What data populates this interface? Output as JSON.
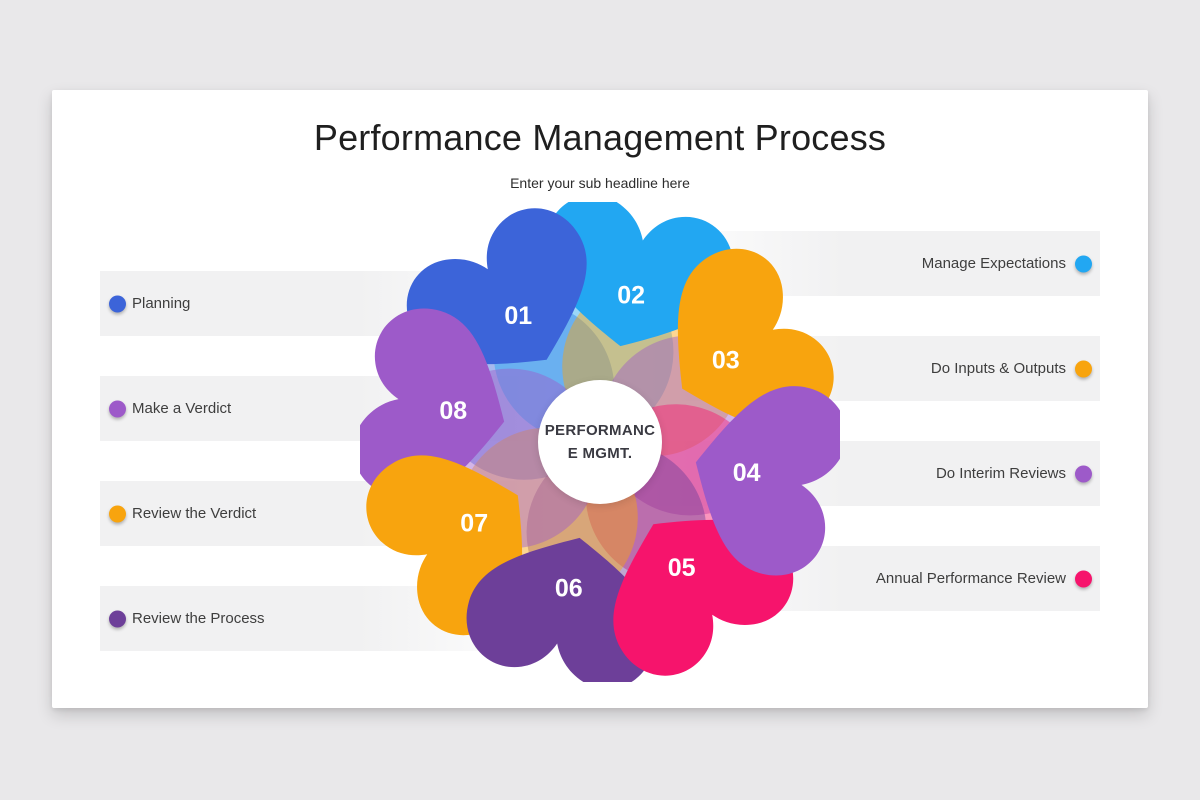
{
  "header": {
    "title": "Performance Management Process",
    "subtitle": "Enter your sub headline here"
  },
  "center": {
    "line1": "PERFORMANC",
    "line2": "E MGMT."
  },
  "legend": {
    "left": [
      {
        "label": "Planning",
        "color": "#3c64d9"
      },
      {
        "label": "Make a Verdict",
        "color": "#9d5ac9"
      },
      {
        "label": "Review the Verdict",
        "color": "#f8a40e"
      },
      {
        "label": "Review the Process",
        "color": "#6d3f99"
      }
    ],
    "right": [
      {
        "label": "Manage Expectations",
        "color": "#22a7f2"
      },
      {
        "label": "Do Inputs & Outputs",
        "color": "#f8a40e"
      },
      {
        "label": "Do Interim Reviews",
        "color": "#9d5ac9"
      },
      {
        "label": "Annual Performance Review",
        "color": "#f6146c"
      }
    ]
  },
  "flower": {
    "petals": [
      {
        "number": "01",
        "color": "#3c64d9",
        "angle": -33
      },
      {
        "number": "02",
        "color": "#22a7f2",
        "angle": 12
      },
      {
        "number": "03",
        "color": "#f8a40e",
        "angle": 57
      },
      {
        "number": "04",
        "color": "#9d5ac9",
        "angle": 102
      },
      {
        "number": "05",
        "color": "#f6146c",
        "angle": 147
      },
      {
        "number": "06",
        "color": "#6d3f99",
        "angle": 192
      },
      {
        "number": "07",
        "color": "#f8a40e",
        "angle": 237
      },
      {
        "number": "08",
        "color": "#9d5ac9",
        "angle": 282
      }
    ]
  }
}
